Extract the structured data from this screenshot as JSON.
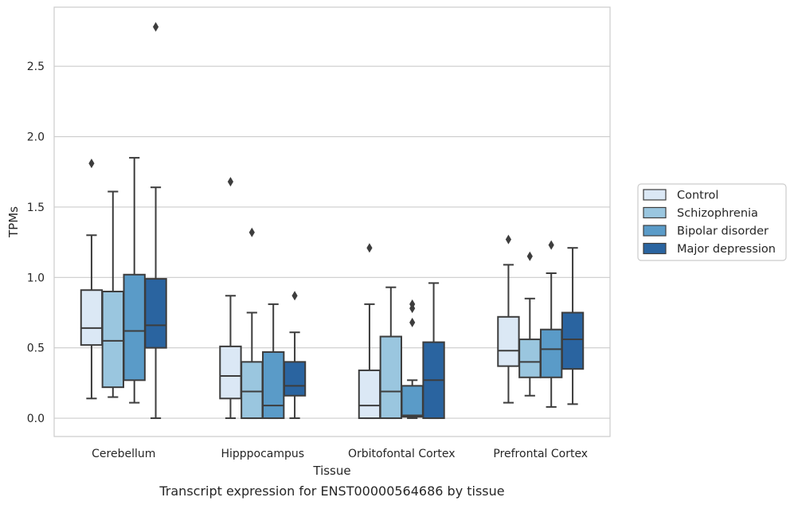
{
  "caption": "Transcript expression for ENST00000564686 by tissue",
  "chart_data": {
    "type": "box",
    "xlabel": "Tissue",
    "ylabel": "TPMs",
    "ylim": [
      -0.13,
      2.92
    ],
    "yticks": [
      "0.0",
      "0.5",
      "1.0",
      "1.5",
      "2.0",
      "2.5"
    ],
    "grid": true,
    "legend_placement": "right, outside plot",
    "categories": [
      "Cerebellum",
      "Hipppocampus",
      "Orbitofontal Cortex",
      "Prefrontal Cortex"
    ],
    "series": [
      {
        "name": "Control",
        "color": "#dbe8f5",
        "boxes": [
          {
            "whislo": 0.14,
            "q1": 0.52,
            "med": 0.64,
            "q3": 0.91,
            "whishi": 1.3,
            "fliers": [
              1.81
            ]
          },
          {
            "whislo": 0.0,
            "q1": 0.14,
            "med": 0.3,
            "q3": 0.51,
            "whishi": 0.87,
            "fliers": [
              1.68
            ]
          },
          {
            "whislo": 0.0,
            "q1": 0.0,
            "med": 0.09,
            "q3": 0.34,
            "whishi": 0.81,
            "fliers": [
              1.21
            ]
          },
          {
            "whislo": 0.11,
            "q1": 0.37,
            "med": 0.48,
            "q3": 0.72,
            "whishi": 1.09,
            "fliers": [
              1.27
            ]
          }
        ]
      },
      {
        "name": "Schizophrenia",
        "color": "#9ac6df",
        "boxes": [
          {
            "whislo": 0.15,
            "q1": 0.22,
            "med": 0.55,
            "q3": 0.9,
            "whishi": 1.61,
            "fliers": []
          },
          {
            "whislo": 0.0,
            "q1": 0.0,
            "med": 0.19,
            "q3": 0.4,
            "whishi": 0.75,
            "fliers": [
              1.32
            ]
          },
          {
            "whislo": 0.0,
            "q1": 0.0,
            "med": 0.19,
            "q3": 0.58,
            "whishi": 0.93,
            "fliers": []
          },
          {
            "whislo": 0.16,
            "q1": 0.29,
            "med": 0.4,
            "q3": 0.56,
            "whishi": 0.85,
            "fliers": [
              1.15
            ]
          }
        ]
      },
      {
        "name": "Bipolar disorder",
        "color": "#5a9bc8",
        "boxes": [
          {
            "whislo": 0.11,
            "q1": 0.27,
            "med": 0.62,
            "q3": 1.02,
            "whishi": 1.85,
            "fliers": []
          },
          {
            "whislo": 0.0,
            "q1": 0.0,
            "med": 0.09,
            "q3": 0.47,
            "whishi": 0.81,
            "fliers": []
          },
          {
            "whislo": 0.0,
            "q1": 0.01,
            "med": 0.02,
            "q3": 0.23,
            "whishi": 0.27,
            "fliers": [
              0.68,
              0.78,
              0.81
            ]
          },
          {
            "whislo": 0.08,
            "q1": 0.29,
            "med": 0.49,
            "q3": 0.63,
            "whishi": 1.03,
            "fliers": [
              1.23
            ]
          }
        ]
      },
      {
        "name": "Major depression",
        "color": "#2a64a0",
        "boxes": [
          {
            "whislo": 0.0,
            "q1": 0.5,
            "med": 0.66,
            "q3": 0.99,
            "whishi": 1.64,
            "fliers": [
              2.78
            ]
          },
          {
            "whislo": 0.0,
            "q1": 0.16,
            "med": 0.23,
            "q3": 0.4,
            "whishi": 0.61,
            "fliers": [
              0.87
            ]
          },
          {
            "whislo": 0.0,
            "q1": 0.0,
            "med": 0.27,
            "q3": 0.54,
            "whishi": 0.96,
            "fliers": []
          },
          {
            "whislo": 0.1,
            "q1": 0.35,
            "med": 0.56,
            "q3": 0.75,
            "whishi": 1.21,
            "fliers": []
          }
        ]
      }
    ]
  }
}
